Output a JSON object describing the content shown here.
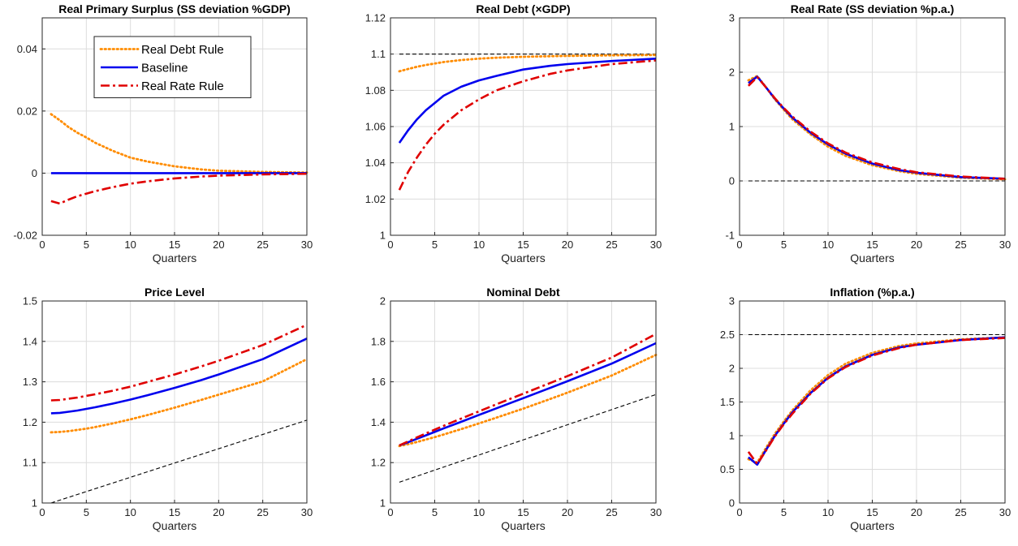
{
  "colors": {
    "real_debt_rule": "#ff8c00",
    "baseline": "#0000ee",
    "real_rate_rule": "#e00000",
    "steady_state": "#000000",
    "grid": "#dcdcdc"
  },
  "chart_data": [
    {
      "type": "line",
      "title": "Real Primary Surplus (SS deviation %GDP)",
      "xlabel": "Quarters",
      "xlim": [
        0,
        30
      ],
      "xticks": [
        0,
        5,
        10,
        15,
        20,
        25,
        30
      ],
      "ylim": [
        -0.02,
        0.05
      ],
      "yticks": [
        -0.02,
        0,
        0.02,
        0.04
      ],
      "ytick_labels": [
        "-0.02",
        "0",
        "0.02",
        "0.04"
      ],
      "grid": true,
      "legend": {
        "placement": "top-right",
        "entries": [
          "Real Debt Rule",
          "Baseline",
          "Real Rate Rule"
        ]
      },
      "x": [
        1,
        2,
        3,
        4,
        5,
        6,
        8,
        10,
        12,
        15,
        18,
        20,
        25,
        30
      ],
      "series": [
        {
          "name": "Real Debt Rule",
          "style": "dotted",
          "color": "#ff8c00",
          "values": [
            0.019,
            0.017,
            0.0148,
            0.013,
            0.0115,
            0.0098,
            0.0072,
            0.005,
            0.0037,
            0.0022,
            0.0012,
            0.0008,
            0.0004,
            0.0002
          ]
        },
        {
          "name": "Baseline",
          "style": "solid",
          "color": "#0000ee",
          "values": [
            0,
            0,
            0,
            0,
            0,
            0,
            0,
            0,
            0,
            0,
            0,
            0,
            0,
            0
          ]
        },
        {
          "name": "Real Rate Rule",
          "style": "dashdot",
          "color": "#e00000",
          "values": [
            -0.009,
            -0.0098,
            -0.0085,
            -0.0074,
            -0.0066,
            -0.0058,
            -0.0045,
            -0.0034,
            -0.0026,
            -0.0017,
            -0.0011,
            -0.0008,
            -0.0004,
            -0.0002
          ]
        }
      ],
      "reference": null
    },
    {
      "type": "line",
      "title": "Real Debt (×GDP)",
      "xlabel": "Quarters",
      "xlim": [
        0,
        30
      ],
      "xticks": [
        0,
        5,
        10,
        15,
        20,
        25,
        30
      ],
      "ylim": [
        1,
        1.12
      ],
      "yticks": [
        1,
        1.02,
        1.04,
        1.06,
        1.08,
        1.1,
        1.12
      ],
      "ytick_labels": [
        "1",
        "1.02",
        "1.04",
        "1.06",
        "1.08",
        "1.1",
        "1.12"
      ],
      "grid": true,
      "x": [
        1,
        2,
        3,
        4,
        5,
        6,
        8,
        10,
        12,
        15,
        18,
        20,
        25,
        30
      ],
      "series": [
        {
          "name": "Real Debt Rule",
          "style": "dotted",
          "color": "#ff8c00",
          "values": [
            1.0905,
            1.0918,
            1.093,
            1.094,
            1.0948,
            1.0956,
            1.0967,
            1.0975,
            1.098,
            1.0985,
            1.0988,
            1.099,
            1.0993,
            1.0995
          ]
        },
        {
          "name": "Baseline",
          "style": "solid",
          "color": "#0000ee",
          "values": [
            1.051,
            1.058,
            1.064,
            1.069,
            1.073,
            1.077,
            1.082,
            1.0855,
            1.088,
            1.0915,
            1.0935,
            1.0945,
            1.0962,
            1.0975
          ]
        },
        {
          "name": "Real Rate Rule",
          "style": "dashdot",
          "color": "#e00000",
          "values": [
            1.025,
            1.035,
            1.043,
            1.05,
            1.056,
            1.061,
            1.069,
            1.075,
            1.08,
            1.085,
            1.089,
            1.091,
            1.0945,
            1.0965
          ]
        }
      ],
      "reference": {
        "type": "horizontal",
        "y": 1.1
      }
    },
    {
      "type": "line",
      "title": "Real Rate (SS deviation %p.a.)",
      "xlabel": "Quarters",
      "xlim": [
        0,
        30
      ],
      "xticks": [
        0,
        5,
        10,
        15,
        20,
        25,
        30
      ],
      "ylim": [
        -1,
        3
      ],
      "yticks": [
        -1,
        0,
        1,
        2,
        3
      ],
      "ytick_labels": [
        "-1",
        "0",
        "1",
        "2",
        "3"
      ],
      "grid": true,
      "x": [
        1,
        2,
        3,
        4,
        5,
        6,
        8,
        10,
        12,
        15,
        18,
        20,
        25,
        30
      ],
      "series": [
        {
          "name": "Real Debt Rule",
          "style": "dotted",
          "color": "#ff8c00",
          "values": [
            1.85,
            1.93,
            1.72,
            1.5,
            1.31,
            1.13,
            0.86,
            0.63,
            0.46,
            0.29,
            0.18,
            0.13,
            0.06,
            0.03
          ]
        },
        {
          "name": "Baseline",
          "style": "solid",
          "color": "#0000ee",
          "values": [
            1.8,
            1.92,
            1.72,
            1.51,
            1.33,
            1.16,
            0.89,
            0.67,
            0.5,
            0.32,
            0.2,
            0.15,
            0.07,
            0.04
          ]
        },
        {
          "name": "Real Rate Rule",
          "style": "dashdot",
          "color": "#e00000",
          "values": [
            1.75,
            1.91,
            1.72,
            1.52,
            1.34,
            1.18,
            0.91,
            0.69,
            0.52,
            0.34,
            0.22,
            0.16,
            0.08,
            0.04
          ]
        }
      ],
      "reference": {
        "type": "horizontal",
        "y": 0
      }
    },
    {
      "type": "line",
      "title": "Price Level",
      "xlabel": "Quarters",
      "xlim": [
        0,
        30
      ],
      "xticks": [
        0,
        5,
        10,
        15,
        20,
        25,
        30
      ],
      "ylim": [
        1,
        1.5
      ],
      "yticks": [
        1,
        1.1,
        1.2,
        1.3,
        1.4,
        1.5
      ],
      "ytick_labels": [
        "1",
        "1.1",
        "1.2",
        "1.3",
        "1.4",
        "1.5"
      ],
      "grid": true,
      "x": [
        1,
        2,
        3,
        4,
        5,
        6,
        8,
        10,
        12,
        15,
        18,
        20,
        25,
        30
      ],
      "series": [
        {
          "name": "Real Debt Rule",
          "style": "dotted",
          "color": "#ff8c00",
          "values": [
            1.175,
            1.176,
            1.178,
            1.181,
            1.184,
            1.188,
            1.197,
            1.207,
            1.218,
            1.236,
            1.255,
            1.268,
            1.301,
            1.356
          ]
        },
        {
          "name": "Baseline",
          "style": "solid",
          "color": "#0000ee",
          "values": [
            1.222,
            1.223,
            1.226,
            1.229,
            1.233,
            1.237,
            1.246,
            1.256,
            1.267,
            1.285,
            1.304,
            1.318,
            1.356,
            1.407
          ]
        },
        {
          "name": "Real Rate Rule",
          "style": "dashdot",
          "color": "#e00000",
          "values": [
            1.254,
            1.255,
            1.258,
            1.261,
            1.265,
            1.269,
            1.278,
            1.288,
            1.3,
            1.318,
            1.338,
            1.352,
            1.391,
            1.441
          ]
        }
      ],
      "reference": {
        "type": "line",
        "x": [
          1,
          30
        ],
        "y": [
          1.0,
          1.205
        ]
      }
    },
    {
      "type": "line",
      "title": "Nominal Debt",
      "xlabel": "Quarters",
      "xlim": [
        0,
        30
      ],
      "xticks": [
        0,
        5,
        10,
        15,
        20,
        25,
        30
      ],
      "ylim": [
        1,
        2
      ],
      "yticks": [
        1,
        1.2,
        1.4,
        1.6,
        1.8,
        2
      ],
      "ytick_labels": [
        "1",
        "1.2",
        "1.4",
        "1.6",
        "1.8",
        "2"
      ],
      "grid": true,
      "x": [
        1,
        2,
        3,
        4,
        5,
        6,
        8,
        10,
        12,
        15,
        18,
        20,
        25,
        30
      ],
      "series": [
        {
          "name": "Real Debt Rule",
          "style": "dotted",
          "color": "#ff8c00",
          "values": [
            1.282,
            1.291,
            1.302,
            1.314,
            1.326,
            1.339,
            1.366,
            1.394,
            1.423,
            1.467,
            1.514,
            1.546,
            1.631,
            1.733
          ]
        },
        {
          "name": "Baseline",
          "style": "solid",
          "color": "#0000ee",
          "values": [
            1.285,
            1.301,
            1.318,
            1.335,
            1.352,
            1.369,
            1.402,
            1.436,
            1.469,
            1.519,
            1.569,
            1.603,
            1.69,
            1.791
          ]
        },
        {
          "name": "Real Rate Rule",
          "style": "dashdot",
          "color": "#e00000",
          "values": [
            1.285,
            1.305,
            1.325,
            1.344,
            1.363,
            1.382,
            1.418,
            1.454,
            1.489,
            1.541,
            1.593,
            1.628,
            1.72,
            1.837
          ]
        }
      ],
      "reference": {
        "type": "line",
        "x": [
          1,
          30
        ],
        "y": [
          1.103,
          1.537
        ]
      }
    },
    {
      "type": "line",
      "title": "Inflation (%p.a.)",
      "xlabel": "Quarters",
      "xlim": [
        0,
        30
      ],
      "xticks": [
        0,
        5,
        10,
        15,
        20,
        25,
        30
      ],
      "ylim": [
        0,
        3
      ],
      "yticks": [
        0,
        0.5,
        1,
        1.5,
        2,
        2.5,
        3
      ],
      "ytick_labels": [
        "0",
        "0.5",
        "1",
        "1.5",
        "2",
        "2.5",
        "3"
      ],
      "grid": true,
      "x": [
        1,
        2,
        3,
        4,
        5,
        6,
        8,
        10,
        12,
        15,
        18,
        20,
        25,
        30
      ],
      "series": [
        {
          "name": "Real Debt Rule",
          "style": "dotted",
          "color": "#ff8c00",
          "values": [
            0.65,
            0.6,
            0.82,
            1.03,
            1.21,
            1.38,
            1.67,
            1.9,
            2.07,
            2.23,
            2.33,
            2.37,
            2.43,
            2.46
          ]
        },
        {
          "name": "Baseline",
          "style": "solid",
          "color": "#0000ee",
          "values": [
            0.68,
            0.57,
            0.79,
            1.0,
            1.18,
            1.35,
            1.63,
            1.86,
            2.03,
            2.2,
            2.31,
            2.35,
            2.42,
            2.46
          ]
        },
        {
          "name": "Real Rate Rule",
          "style": "dashdot",
          "color": "#e00000",
          "values": [
            0.76,
            0.58,
            0.78,
            0.99,
            1.17,
            1.33,
            1.62,
            1.85,
            2.02,
            2.19,
            2.3,
            2.35,
            2.42,
            2.45
          ]
        }
      ],
      "reference": {
        "type": "horizontal",
        "y": 2.5
      }
    }
  ]
}
